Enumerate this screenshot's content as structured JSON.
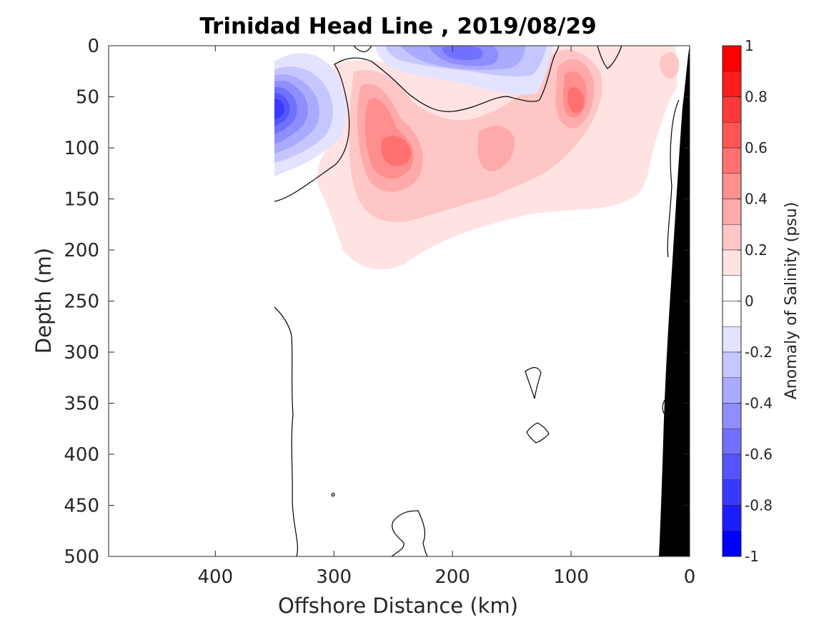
{
  "chart_data": {
    "type": "heatmap",
    "title": "Trinidad Head Line , 2019/08/29",
    "xlabel": "Offshore Distance (km)",
    "ylabel": "Depth (m)",
    "xlim": [
      490,
      0
    ],
    "ylim": [
      0,
      500
    ],
    "x_reversed": true,
    "y_reversed": true,
    "x_ticks": [
      400,
      300,
      200,
      100,
      0
    ],
    "x_tick_labels": [
      "400",
      "300",
      "200",
      "100",
      "0"
    ],
    "y_ticks": [
      0,
      50,
      100,
      150,
      200,
      250,
      300,
      350,
      400,
      450,
      500
    ],
    "y_tick_labels": [
      "0",
      "50",
      "100",
      "150",
      "200",
      "250",
      "300",
      "350",
      "400",
      "450",
      "500"
    ],
    "colorbar": {
      "label": "Anomaly of Salinity (psu)",
      "range": [
        -1,
        1
      ],
      "ticks": [
        1,
        0.8,
        0.6,
        0.4,
        0.2,
        0,
        -0.2,
        -0.4,
        -0.6,
        -0.8,
        -1
      ],
      "tick_labels": [
        "1",
        "0.8",
        "0.6",
        "0.4",
        "0.2",
        "0",
        "-0.2",
        "-0.4",
        "-0.6",
        "-0.8",
        "-1"
      ],
      "levels": [
        {
          "lo": 0.9,
          "hi": 1.0,
          "color": "#ff0000"
        },
        {
          "lo": 0.8,
          "hi": 0.9,
          "color": "#ff1c1c"
        },
        {
          "lo": 0.7,
          "hi": 0.8,
          "color": "#ff3939"
        },
        {
          "lo": 0.6,
          "hi": 0.7,
          "color": "#ff5555"
        },
        {
          "lo": 0.5,
          "hi": 0.6,
          "color": "#ff7171"
        },
        {
          "lo": 0.4,
          "hi": 0.5,
          "color": "#ff8e8e"
        },
        {
          "lo": 0.3,
          "hi": 0.4,
          "color": "#ffaaaa"
        },
        {
          "lo": 0.2,
          "hi": 0.3,
          "color": "#ffc6c6"
        },
        {
          "lo": 0.1,
          "hi": 0.2,
          "color": "#ffe3e3"
        },
        {
          "lo": 0.0,
          "hi": 0.1,
          "color": "#ffffff"
        },
        {
          "lo": -0.1,
          "hi": 0.0,
          "color": "#ffffff"
        },
        {
          "lo": -0.2,
          "hi": -0.1,
          "color": "#e3e3ff"
        },
        {
          "lo": -0.3,
          "hi": -0.2,
          "color": "#c6c6ff"
        },
        {
          "lo": -0.4,
          "hi": -0.3,
          "color": "#aaaaff"
        },
        {
          "lo": -0.5,
          "hi": -0.4,
          "color": "#8e8eff"
        },
        {
          "lo": -0.6,
          "hi": -0.5,
          "color": "#7171ff"
        },
        {
          "lo": -0.7,
          "hi": -0.6,
          "color": "#5555ff"
        },
        {
          "lo": -0.8,
          "hi": -0.7,
          "color": "#3939ff"
        },
        {
          "lo": -0.9,
          "hi": -0.8,
          "color": "#1c1cff"
        },
        {
          "lo": -1.0,
          "hi": -0.9,
          "color": "#0000ff"
        }
      ]
    },
    "features": [
      {
        "name": "salty-core-250km",
        "distance_km": 252,
        "depth_m": 100,
        "anomaly": 0.5
      },
      {
        "name": "salty-core-95km",
        "distance_km": 97,
        "depth_m": 55,
        "anomaly": 0.5
      },
      {
        "name": "salty-core-160km",
        "distance_km": 162,
        "depth_m": 100,
        "anomaly": 0.3
      },
      {
        "name": "salty-core-20km",
        "distance_km": 18,
        "depth_m": 22,
        "anomaly": 0.2
      },
      {
        "name": "fresh-core-345km",
        "distance_km": 345,
        "depth_m": 62,
        "anomaly": -0.8
      },
      {
        "name": "fresh-core-195km",
        "distance_km": 195,
        "depth_m": 10,
        "anomaly": -0.5
      }
    ],
    "bathymetry": {
      "color": "#000000",
      "shelf_points": [
        [
          0,
          0
        ],
        [
          0,
          500
        ],
        [
          26,
          500
        ],
        [
          8,
          100
        ]
      ]
    }
  }
}
